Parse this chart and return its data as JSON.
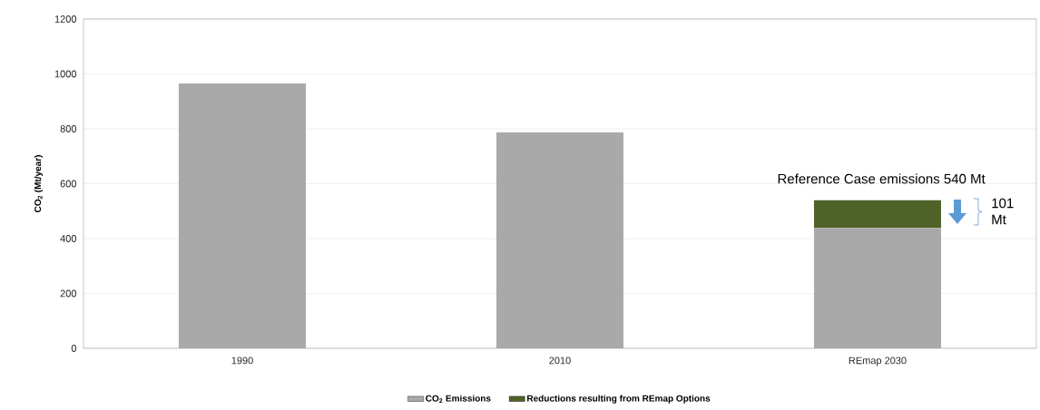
{
  "chart_data": {
    "type": "bar",
    "stacked": true,
    "ylabel": "CO$_{2}$ (Mt/year)",
    "categories": [
      "1990",
      "2010",
      "REmap 2030"
    ],
    "series": [
      {
        "name": "CO$_{2}$ Emissions",
        "color": "#a9a9a9",
        "values": [
          965,
          787,
          439
        ]
      },
      {
        "name": "Reductions resulting from REmap Options",
        "color": "#4f6228",
        "values": [
          null,
          null,
          101
        ]
      }
    ],
    "ylim": [
      0,
      1200
    ],
    "yticks": [
      0,
      200,
      400,
      600,
      800,
      1000,
      1200
    ],
    "grid": "y",
    "legend": "bottom",
    "annotations": [
      {
        "text": "Reference Case emissions 540 Mt",
        "x": "REmap 2030",
        "y": 540
      },
      "101 Mt"
    ]
  }
}
